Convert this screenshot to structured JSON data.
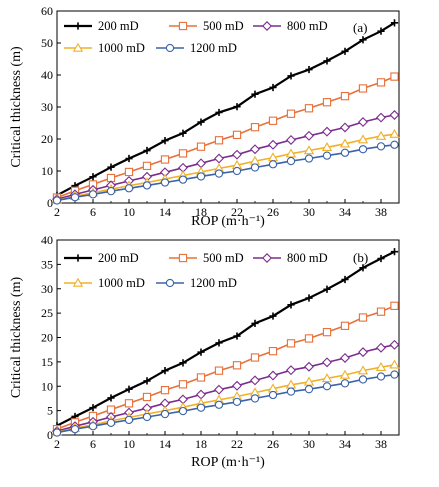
{
  "chart_data": [
    {
      "type": "line",
      "panel_label": "(a)",
      "xlabel": "ROP (m·h⁻¹)",
      "ylabel": "Critical thickness (m)",
      "xlim": [
        2,
        40
      ],
      "ylim": [
        0,
        60
      ],
      "x_ticks": [
        2,
        6,
        10,
        14,
        18,
        22,
        26,
        30,
        34,
        38
      ],
      "y_ticks": [
        0,
        10,
        20,
        30,
        40,
        50,
        60
      ],
      "grid": false,
      "legend_placement": "top-left",
      "legend_rows": [
        [
          "200 mD",
          "500 mD",
          "800 mD"
        ],
        [
          "1000 mD",
          "1200 mD"
        ]
      ],
      "x": [
        2,
        4,
        6,
        8,
        10,
        12,
        14,
        16,
        18,
        20,
        22,
        24,
        26,
        28,
        30,
        32,
        34,
        36,
        38,
        39.5
      ],
      "series": [
        {
          "name": "200 mD",
          "color": "#000000",
          "marker": "plus",
          "values": [
            2.4,
            5.4,
            8.2,
            11.2,
            13.9,
            16.4,
            19.5,
            21.8,
            25.3,
            28.3,
            30.1,
            34.0,
            36.1,
            39.7,
            41.7,
            44.4,
            47.4,
            51.0,
            53.7,
            56.3
          ]
        },
        {
          "name": "500 mD",
          "color": "#e8703a",
          "marker": "square",
          "values": [
            1.7,
            3.8,
            5.8,
            7.8,
            9.7,
            11.6,
            13.6,
            15.5,
            17.6,
            19.6,
            21.3,
            23.7,
            25.7,
            27.9,
            29.6,
            31.5,
            33.4,
            35.8,
            37.7,
            39.5
          ]
        },
        {
          "name": "800 mD",
          "color": "#7b2d8e",
          "marker": "diamond",
          "values": [
            1.2,
            2.7,
            4.1,
            5.5,
            6.9,
            8.2,
            9.6,
            11.0,
            12.4,
            13.9,
            15.1,
            16.8,
            18.2,
            19.7,
            21.0,
            22.3,
            23.6,
            25.3,
            26.7,
            27.5
          ]
        },
        {
          "name": "1000 mD",
          "color": "#f0b028",
          "marker": "triangle",
          "values": [
            0.9,
            2.1,
            3.2,
            4.3,
            5.4,
            6.4,
            7.5,
            8.6,
            9.7,
            10.8,
            11.8,
            13.1,
            14.2,
            15.4,
            16.4,
            17.4,
            18.5,
            19.8,
            20.9,
            21.5
          ]
        },
        {
          "name": "1200 mD",
          "color": "#3a63a8",
          "marker": "circle",
          "values": [
            0.8,
            1.8,
            2.7,
            3.7,
            4.6,
            5.5,
            6.4,
            7.3,
            8.3,
            9.2,
            10.0,
            11.1,
            12.1,
            13.1,
            13.9,
            14.8,
            15.7,
            16.8,
            17.7,
            18.2
          ]
        }
      ]
    },
    {
      "type": "line",
      "panel_label": "(b)",
      "xlabel": "ROP (m·h⁻¹)",
      "ylabel": "Critical thickness (m)",
      "xlim": [
        2,
        40
      ],
      "ylim": [
        0,
        40
      ],
      "x_ticks": [
        2,
        6,
        10,
        14,
        18,
        22,
        26,
        30,
        34,
        38
      ],
      "y_ticks": [
        0,
        5,
        10,
        15,
        20,
        25,
        30,
        35,
        40
      ],
      "grid": false,
      "legend_placement": "top-left",
      "legend_rows": [
        [
          "200 mD",
          "500 mD",
          "800 mD"
        ],
        [
          "1000 mD",
          "1200 mD"
        ]
      ],
      "x": [
        2,
        4,
        6,
        8,
        10,
        12,
        14,
        16,
        18,
        20,
        22,
        24,
        26,
        28,
        30,
        32,
        34,
        36,
        38,
        39.5
      ],
      "series": [
        {
          "name": "200 mD",
          "color": "#000000",
          "marker": "plus",
          "values": [
            1.9,
            3.8,
            5.6,
            7.6,
            9.4,
            11.1,
            13.2,
            14.8,
            17.0,
            18.9,
            20.3,
            22.9,
            24.4,
            26.7,
            28.1,
            29.9,
            31.9,
            34.3,
            36.2,
            37.6
          ]
        },
        {
          "name": "500 mD",
          "color": "#e8703a",
          "marker": "square",
          "values": [
            1.2,
            2.6,
            3.9,
            5.2,
            6.5,
            7.8,
            9.2,
            10.4,
            11.8,
            13.2,
            14.3,
            15.9,
            17.2,
            18.8,
            19.8,
            21.1,
            22.4,
            24.1,
            25.3,
            26.5
          ]
        },
        {
          "name": "800 mD",
          "color": "#7b2d8e",
          "marker": "diamond",
          "values": [
            0.8,
            1.8,
            2.7,
            3.7,
            4.6,
            5.5,
            6.5,
            7.3,
            8.3,
            9.3,
            10.1,
            11.2,
            12.2,
            13.3,
            14.0,
            14.9,
            15.8,
            17.0,
            17.9,
            18.5
          ]
        },
        {
          "name": "1000 mD",
          "color": "#f0b028",
          "marker": "triangle",
          "values": [
            0.6,
            1.4,
            2.1,
            2.9,
            3.6,
            4.3,
            5.0,
            5.7,
            6.5,
            7.2,
            7.9,
            8.7,
            9.5,
            10.3,
            10.9,
            11.6,
            12.3,
            13.2,
            13.9,
            14.4
          ]
        },
        {
          "name": "1200 mD",
          "color": "#3a63a8",
          "marker": "circle",
          "values": [
            0.5,
            1.2,
            1.8,
            2.5,
            3.1,
            3.7,
            4.3,
            4.9,
            5.6,
            6.2,
            6.8,
            7.5,
            8.2,
            8.9,
            9.4,
            10.0,
            10.6,
            11.4,
            12.0,
            12.4
          ]
        }
      ]
    }
  ]
}
